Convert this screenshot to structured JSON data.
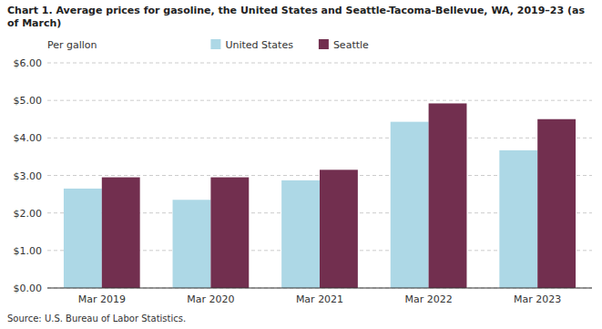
{
  "chart_data": {
    "type": "bar",
    "title": "Chart 1. Average prices for gasoline, the United States and Seattle-Tacoma-Bellevue, WA, 2019–23 (as of March)",
    "ylabel": "Per gallon",
    "source": "Source: U.S. Bureau of Labor Statistics.",
    "categories": [
      "Mar 2019",
      "Mar 2020",
      "Mar 2021",
      "Mar 2022",
      "Mar 2023"
    ],
    "series": [
      {
        "name": "United States",
        "color": "#add8e6",
        "values": [
          2.65,
          2.35,
          2.87,
          4.43,
          3.67
        ]
      },
      {
        "name": "Seattle",
        "color": "#722f4f",
        "values": [
          2.95,
          2.95,
          3.15,
          4.92,
          4.5
        ]
      }
    ],
    "ylim": [
      0,
      6.0
    ],
    "yticks": [
      {
        "value": 0.0,
        "label": "$0.00"
      },
      {
        "value": 1.0,
        "label": "$1.00"
      },
      {
        "value": 2.0,
        "label": "$2.00"
      },
      {
        "value": 3.0,
        "label": "$3.00"
      },
      {
        "value": 4.0,
        "label": "$4.00"
      },
      {
        "value": 5.0,
        "label": "$5.00"
      },
      {
        "value": 6.0,
        "label": "$6.00"
      }
    ],
    "grid": true,
    "legend": "top"
  }
}
